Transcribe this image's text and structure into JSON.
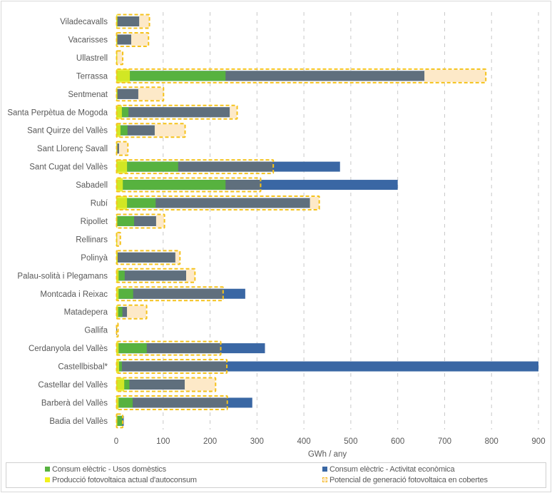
{
  "chart_data": {
    "type": "bar",
    "orientation": "horizontal",
    "title": "",
    "xlabel": "GWh / any",
    "ylabel": "",
    "xlim": [
      0,
      900
    ],
    "xticks": [
      0,
      100,
      200,
      300,
      400,
      500,
      600,
      700,
      800,
      900
    ],
    "grid": "vertical dashed",
    "legend_position": "bottom",
    "categories": [
      "Viladecavalls",
      "Vacarisses",
      "Ullastrell",
      "Terrassa",
      "Sentmenat",
      "Santa Perpètua de Mogoda",
      "Sant Quirze del Vallès",
      "Sant Llorenç Savall",
      "Sant Cugat del Vallès",
      "Sabadell",
      "Rubí",
      "Ripollet",
      "Rellinars",
      "Polinyà",
      "Palau-solità i Plegamans",
      "Montcada i Reixac",
      "Matadepera",
      "Gallifa",
      "Cerdanyola del Vallès",
      "Castellbisbal*",
      "Castellar del Vallès",
      "Barberà del Vallès",
      "Badia del Vallès"
    ],
    "series": [
      {
        "name": "Consum elèctric - Activitat econòmica",
        "color": "#3a67a4",
        "values": [
          49,
          32,
          1,
          657,
          47,
          242,
          82,
          6,
          477,
          600,
          413,
          85,
          1,
          126,
          149,
          275,
          23,
          1,
          317,
          950,
          146,
          290,
          16
        ]
      },
      {
        "name": "Consum elèctric - Usos domèstics",
        "color": "#57b23f",
        "values": [
          3,
          2,
          1,
          233,
          3,
          26,
          24,
          1,
          132,
          233,
          84,
          38,
          1,
          3,
          18,
          36,
          13,
          0,
          65,
          12,
          28,
          35,
          13
        ]
      },
      {
        "name": "Producció fotovoltaica actual d'autoconsum",
        "color": "#e6f020",
        "values": [
          2,
          2,
          1,
          29,
          2,
          12,
          9,
          1,
          23,
          14,
          23,
          2,
          1,
          3,
          5,
          5,
          4,
          0,
          5,
          6,
          17,
          5,
          1
        ]
      },
      {
        "name": "Potencial de generació fotovoltaica en cobertes",
        "color": "#f5c21b",
        "fill": "#fde9c8",
        "values": [
          70,
          68,
          13,
          787,
          100,
          257,
          146,
          24,
          334,
          307,
          432,
          102,
          8,
          135,
          167,
          227,
          64,
          1,
          222,
          235,
          211,
          236,
          13
        ]
      }
    ]
  },
  "legend": {
    "items": [
      {
        "label": "Consum elèctric - Usos domèstics",
        "color": "#57b23f"
      },
      {
        "label": "Consum elèctric - Activitat econòmica",
        "color": "#3a67a4"
      },
      {
        "label": "Producció fotovoltaica actual d'autoconsum",
        "color": "#f2f21a"
      },
      {
        "label": "Potencial de generació fotovoltaica en cobertes",
        "color": "#f5b91b"
      }
    ]
  },
  "colors": {
    "overlap_gray": "#5f6f7d",
    "grid": "#c8c8c8",
    "text": "#595959"
  }
}
